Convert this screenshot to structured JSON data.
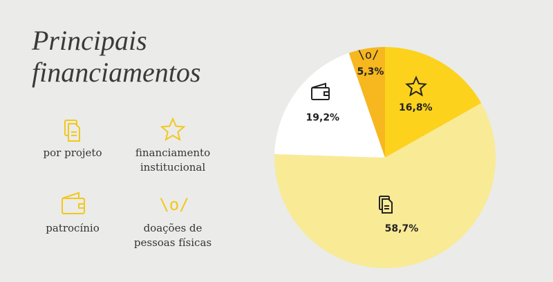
{
  "chart_data": {
    "type": "pie",
    "title": "Principais financiamentos",
    "categories": [
      "financiamento institucional",
      "por projeto",
      "patrocínio",
      "doações de pessoas físicas"
    ],
    "values": [
      16.8,
      58.7,
      19.2,
      5.3
    ],
    "value_labels": [
      "16,8%",
      "58,7%",
      "19,2%",
      "5,3%"
    ],
    "colors": [
      "#fcd21d",
      "#f9ea96",
      "#ffffff",
      "#f6b71f"
    ],
    "emoticon": "\\o/"
  }
}
